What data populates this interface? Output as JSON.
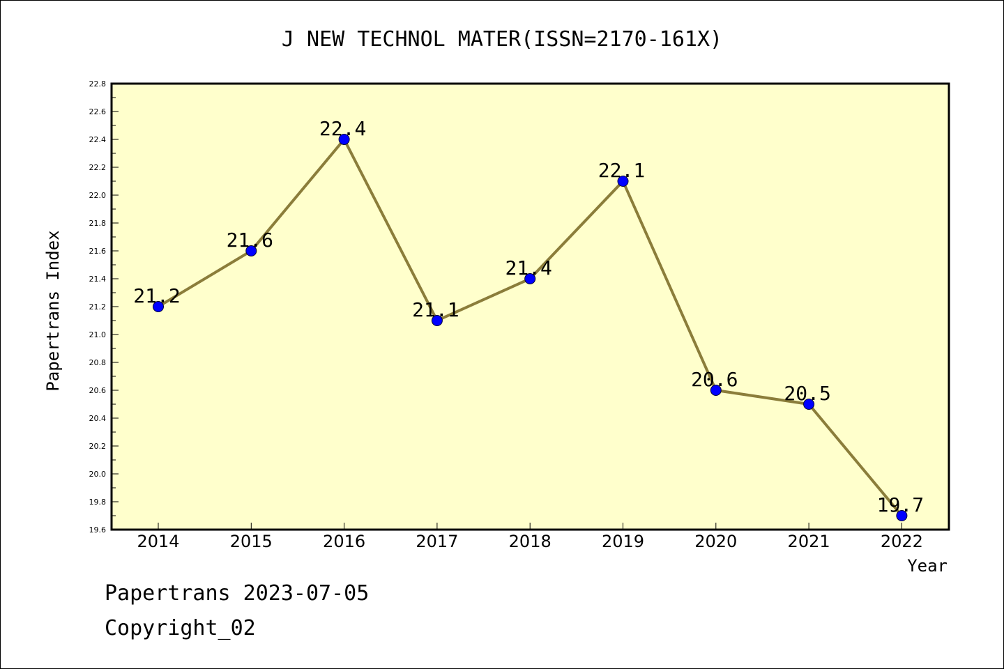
{
  "chart_data": {
    "type": "line",
    "title": "J NEW TECHNOL MATER(ISSN=2170-161X)",
    "xlabel": "Year",
    "ylabel": "Papertrans Index",
    "categories": [
      "2014",
      "2015",
      "2016",
      "2017",
      "2018",
      "2019",
      "2020",
      "2021",
      "2022"
    ],
    "values": [
      21.2,
      21.6,
      22.4,
      21.1,
      21.4,
      22.1,
      20.6,
      20.5,
      19.7
    ],
    "data_labels": [
      "21.2",
      "21.6",
      "22.4",
      "21.1",
      "21.4",
      "22.1",
      "20.6",
      "20.5",
      "19.7"
    ],
    "ylim": [
      19.6,
      22.8
    ],
    "yticks": [
      "19.6",
      "19.8",
      "20.0",
      "20.2",
      "20.4",
      "20.6",
      "20.8",
      "21.0",
      "21.2",
      "21.4",
      "21.6",
      "21.8",
      "22.0",
      "22.2",
      "22.4",
      "22.6",
      "22.8"
    ],
    "grid": false,
    "colors": {
      "plot_background": "#ffffcc",
      "line": "#8b7d3a",
      "marker": "#0000ff"
    }
  },
  "footer": {
    "date_line": "Papertrans 2023-07-05",
    "copyright": "Copyright_02"
  }
}
